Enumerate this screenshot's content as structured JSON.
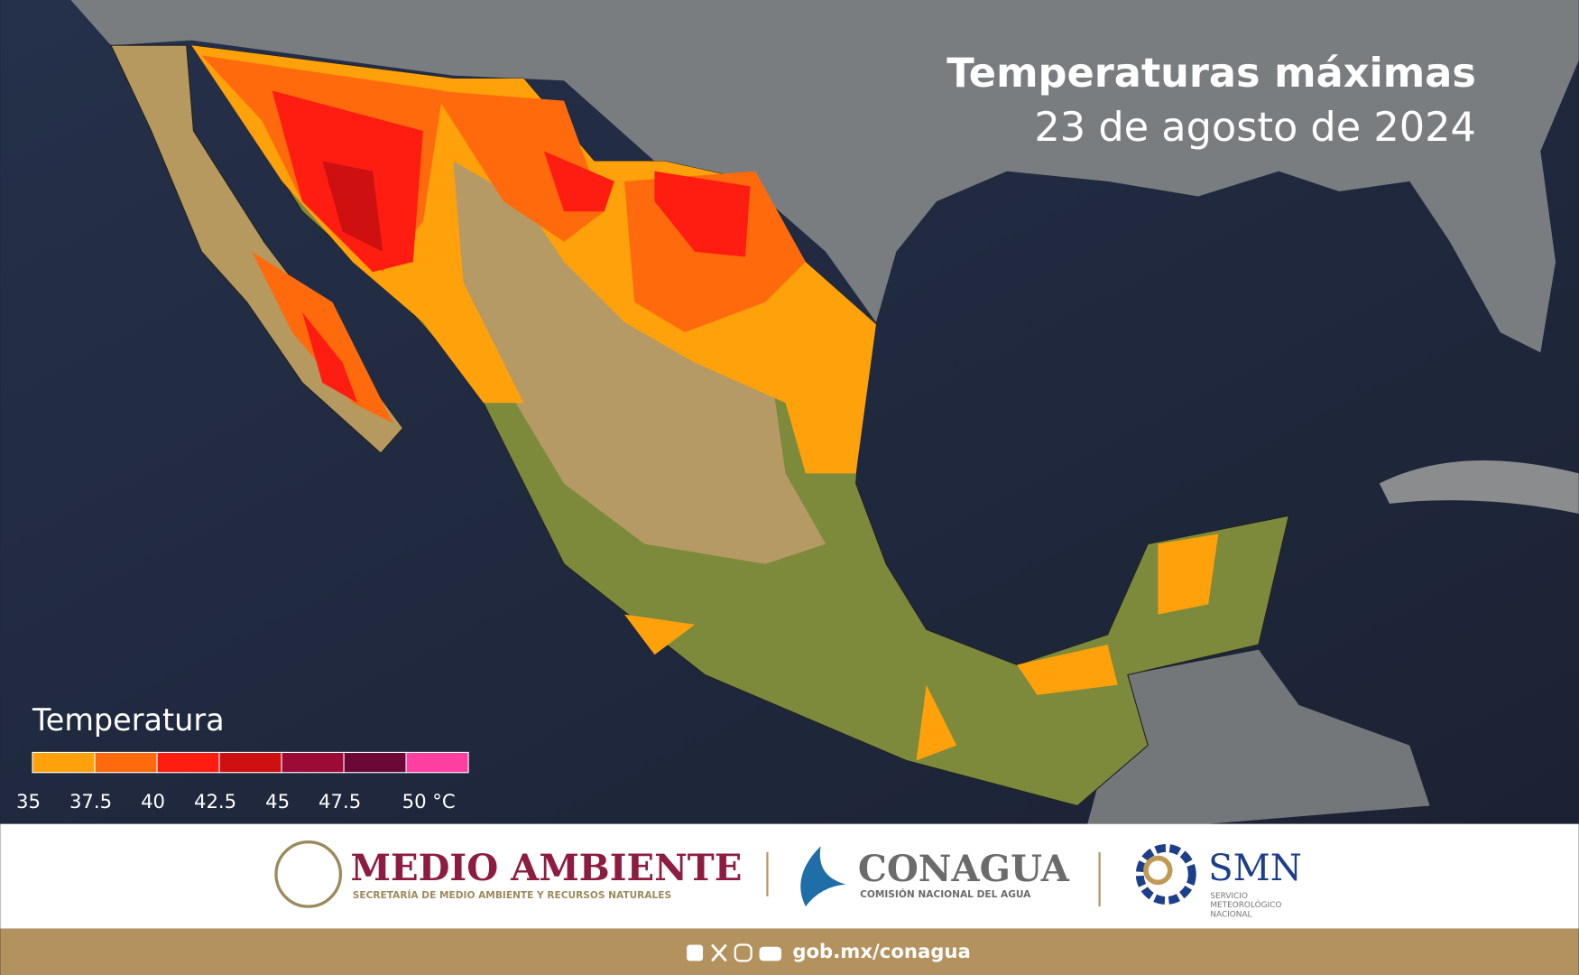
{
  "header": {
    "title": "Temperaturas máximas",
    "subtitle": "23 de agosto de 2024"
  },
  "legend": {
    "title": "Temperatura",
    "ticks": [
      35,
      37.5,
      40,
      42.5,
      45,
      47.5,
      {
        "value": 50,
        "label": "50 °C"
      }
    ],
    "colors": [
      "#ffa10a",
      "#ff6b0c",
      "#ff1d12",
      "#cf1010",
      "#9c0b36",
      "#6b0838",
      "#ff3ea2"
    ]
  },
  "footer": {
    "medio_ambiente": "MEDIO AMBIENTE",
    "medio_ambiente_sub": "SECRETARÍA DE MEDIO AMBIENTE Y RECURSOS NATURALES",
    "conagua": "CONAGUA",
    "conagua_sub": "COMISIÓN NACIONAL DEL AGUA",
    "smn": "SMN",
    "smn_sub": [
      "SERVICIO",
      "METEOROLÓGICO",
      "NACIONAL"
    ],
    "url": "gob.mx/conagua"
  }
}
